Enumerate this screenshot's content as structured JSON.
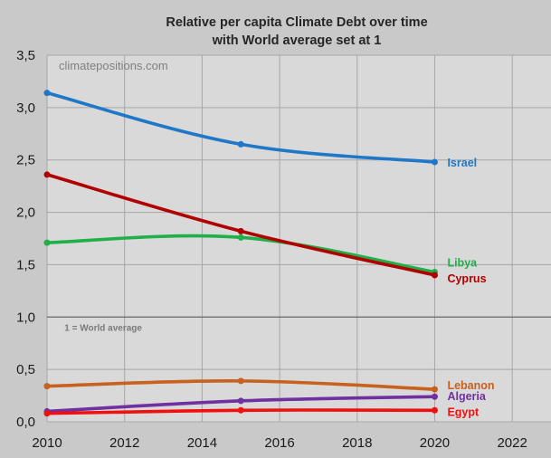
{
  "chart_data": {
    "type": "line",
    "title": "Relative per capita Climate Debt over time",
    "subtitle": "with World average set at 1",
    "watermark": "climatepositions.com",
    "xlabel": "",
    "ylabel": "",
    "xlim": [
      2010,
      2023
    ],
    "ylim": [
      0,
      3.5
    ],
    "x_ticks": [
      2010,
      2012,
      2014,
      2016,
      2018,
      2020,
      2022
    ],
    "x_tick_labels": [
      "2010",
      "2012",
      "2014",
      "2016",
      "2018",
      "2020",
      "2022"
    ],
    "y_ticks": [
      0,
      0.5,
      1,
      1.5,
      2,
      2.5,
      3,
      3.5
    ],
    "y_tick_labels": [
      "0,0",
      "0,5",
      "1,0",
      "1,5",
      "2,0",
      "2,5",
      "3,0",
      "3,5"
    ],
    "grid": true,
    "reference_line": {
      "y": 1.0,
      "label": "1 = World average"
    },
    "x": [
      2010,
      2015,
      2020
    ],
    "series": [
      {
        "name": "Israel",
        "color": "#1f77c8",
        "values": [
          3.14,
          2.65,
          2.48
        ]
      },
      {
        "name": "Libya",
        "color": "#1fb04a",
        "values": [
          1.71,
          1.76,
          1.43
        ]
      },
      {
        "name": "Cyprus",
        "color": "#b00000",
        "values": [
          2.36,
          1.82,
          1.4
        ]
      },
      {
        "name": "Lebanon",
        "color": "#c8601e",
        "values": [
          0.34,
          0.39,
          0.31
        ]
      },
      {
        "name": "Algeria",
        "color": "#7030a0",
        "values": [
          0.1,
          0.2,
          0.24
        ]
      },
      {
        "name": "Egypt",
        "color": "#f01010",
        "values": [
          0.08,
          0.11,
          0.11
        ]
      }
    ]
  }
}
